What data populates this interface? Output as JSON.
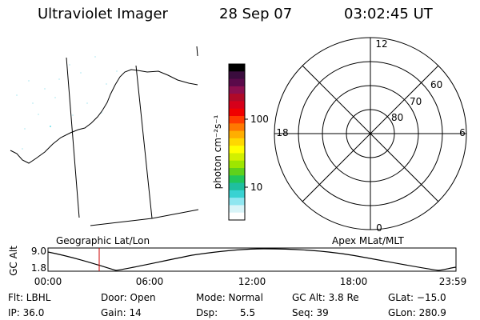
{
  "header": {
    "title": "Ultraviolet Imager",
    "date": "28 Sep 07",
    "time": "03:02:45 UT"
  },
  "geo_panel": {
    "label": "Geographic Lat/Lon"
  },
  "colorbar": {
    "unit_label": "photon cm⁻²s⁻¹",
    "ticks": [
      "100",
      "10"
    ],
    "scale": "log",
    "colors": [
      "#000000",
      "#3a0c3d",
      "#5a0a4a",
      "#8c0f4e",
      "#b00a28",
      "#d6001a",
      "#f00000",
      "#ff3c00",
      "#ff7800",
      "#ffae00",
      "#ffd800",
      "#ffff00",
      "#d2f000",
      "#9ee600",
      "#5fd11b",
      "#21c65a",
      "#1fbf9f",
      "#39d2d2",
      "#8fe6f0",
      "#d8f4f8",
      "#ffffff"
    ]
  },
  "polar_panel": {
    "label": "Apex MLat/MLT",
    "mlt_labels": [
      "12",
      "18",
      "6",
      "0"
    ],
    "mlat_labels": [
      "60",
      "70",
      "80"
    ]
  },
  "altitude_plot": {
    "ylabel": "GC Alt",
    "yticks": [
      "9.0",
      "1.8"
    ],
    "xticks": [
      "00:00",
      "06:00",
      "12:00",
      "18:00",
      "23:59"
    ],
    "current_time_marker": "03:02",
    "current_marker_color": "#cc0000"
  },
  "params": {
    "filter": "Flt: LBHL",
    "door": "Door: Open",
    "mode": "Mode: Normal",
    "gc_alt": "GC Alt: 3.8 Re",
    "glat": "GLat: −15.0",
    "ip": "IP: 36.0",
    "gain": "Gain: 14",
    "dsp_label": "Dsp:",
    "dsp_value": "5.5",
    "seq": "Seq: 39",
    "glon": "GLon: 280.9"
  }
}
